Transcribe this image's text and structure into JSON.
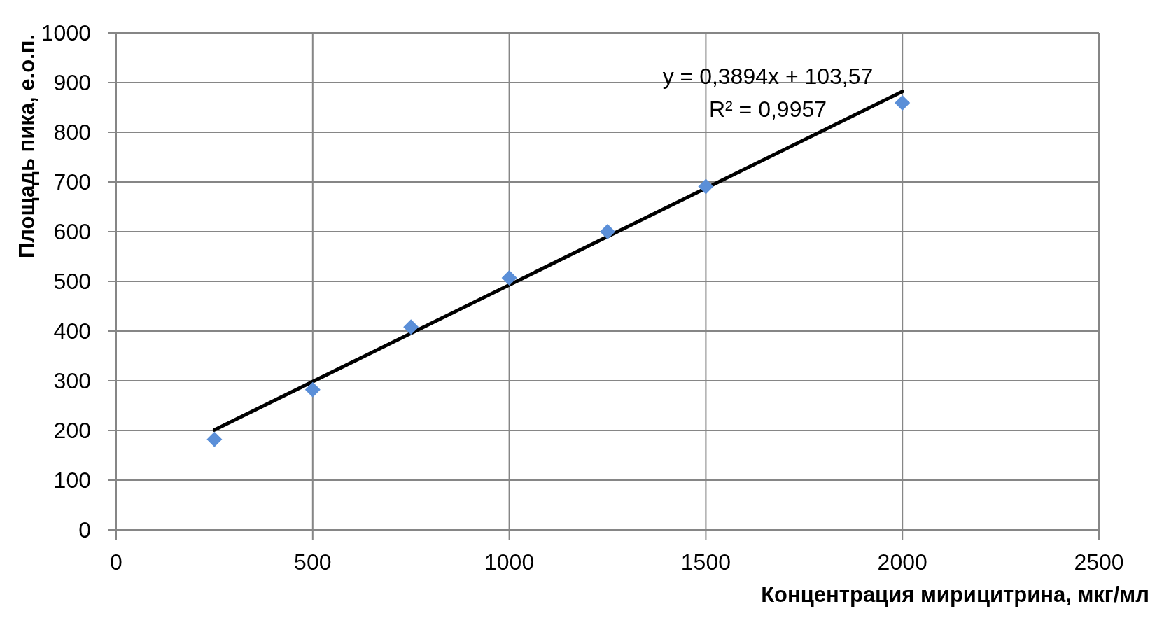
{
  "chart_data": {
    "type": "scatter",
    "xlabel": "Концентрация мирицитрина, мкг/мл",
    "ylabel": "Площадь пика, е.о.п.",
    "x": [
      250,
      500,
      750,
      1000,
      1250,
      1500,
      2000
    ],
    "series": [
      {
        "color": "#5b8fd8",
        "values": [
          182,
          282,
          408,
          507,
          600,
          691,
          859
        ]
      },
      {
        "type": "line",
        "x": [
          250,
          2000
        ],
        "color": "#000000",
        "values": [
          201,
          882
        ],
        "marker": "none",
        "line_style": "solid"
      }
    ],
    "xlim": [
      0,
      2500
    ],
    "xticks": [
      0,
      500,
      1000,
      1500,
      2000,
      2500
    ],
    "ylim": [
      0,
      1000
    ],
    "yticks": [
      0,
      100,
      200,
      300,
      400,
      500,
      600,
      700,
      800,
      900,
      1000
    ],
    "grid": true,
    "marker": "diamond",
    "annotations": [
      "y = 0,3894x + 103,57",
      "R² = 0,9957"
    ]
  }
}
